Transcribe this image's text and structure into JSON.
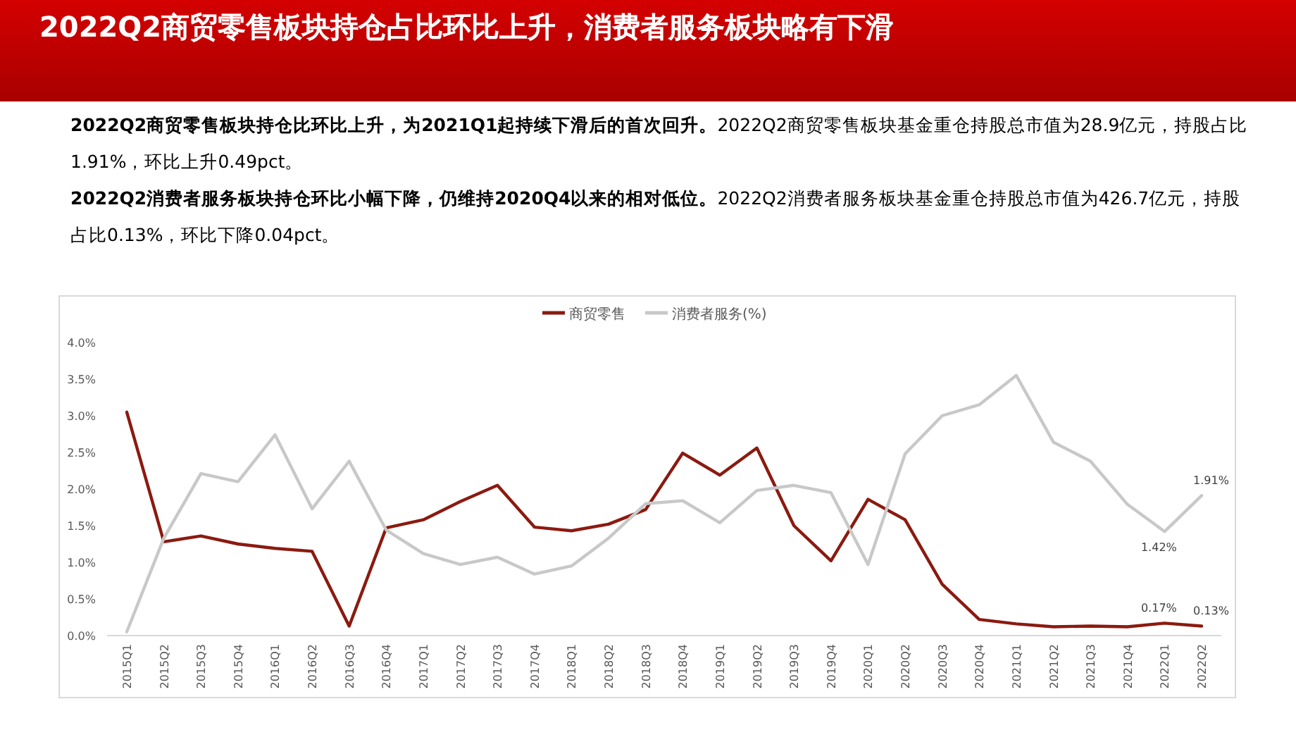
{
  "chart_data": {
    "type": "line",
    "title": "2022Q2商贸零售板块持仓占比环比上升，消费者服务板块略有下滑",
    "annotations": [
      "2022Q2商贸零售板块持仓比环比上升，为2021Q1起持续下滑后的首次回升。",
      "2022Q2商贸零售板块基金重仓持股总市值为28.9亿元，持股占比1.91%，环比上升0.49pct。",
      "2022Q2消费者服务板块持仓环比小幅下降，仍维持2020Q4以来的相对低位。",
      "2022Q2消费者服务板块基金重仓持股总市值为426.7亿元，持股占比0.13%，环比下降0.04pct。"
    ],
    "categories": [
      "2015Q1",
      "2015Q2",
      "2015Q3",
      "2015Q4",
      "2016Q1",
      "2016Q2",
      "2016Q3",
      "2016Q4",
      "2017Q1",
      "2017Q2",
      "2017Q3",
      "2017Q4",
      "2018Q1",
      "2018Q2",
      "2018Q3",
      "2018Q4",
      "2019Q1",
      "2019Q2",
      "2019Q3",
      "2019Q4",
      "2020Q1",
      "2020Q2",
      "2020Q3",
      "2020Q4",
      "2021Q1",
      "2021Q2",
      "2021Q3",
      "2021Q4",
      "2022Q1",
      "2022Q2"
    ],
    "series": [
      {
        "name": "商贸零售",
        "color": "#8b1a10",
        "values": [
          3.05,
          1.28,
          1.36,
          1.25,
          1.19,
          1.15,
          0.13,
          1.47,
          1.58,
          1.83,
          2.05,
          1.48,
          1.43,
          1.52,
          1.72,
          2.49,
          2.19,
          2.56,
          1.5,
          1.02,
          1.86,
          1.58,
          0.7,
          0.22,
          0.16,
          0.12,
          0.13,
          0.12,
          0.17,
          0.13
        ],
        "value_labels": [
          null,
          null,
          null,
          null,
          null,
          null,
          null,
          null,
          null,
          null,
          null,
          null,
          null,
          null,
          null,
          null,
          null,
          null,
          null,
          null,
          null,
          null,
          null,
          null,
          null,
          null,
          null,
          null,
          "0.17%",
          "0.13%"
        ]
      },
      {
        "name": "消费者服务(%)",
        "color": "#c8c8c8",
        "values": [
          0.05,
          1.33,
          2.21,
          2.1,
          2.74,
          1.73,
          2.38,
          1.44,
          1.12,
          0.97,
          1.07,
          0.84,
          0.95,
          1.33,
          1.8,
          1.84,
          1.54,
          1.98,
          2.05,
          1.95,
          0.97,
          2.48,
          3.0,
          3.15,
          3.55,
          2.64,
          2.38,
          1.79,
          1.42,
          1.91
        ],
        "value_labels": [
          null,
          null,
          null,
          null,
          null,
          null,
          null,
          null,
          null,
          null,
          null,
          null,
          null,
          null,
          null,
          null,
          null,
          null,
          null,
          null,
          null,
          null,
          null,
          null,
          null,
          null,
          null,
          null,
          "1.42%",
          "1.91%"
        ]
      }
    ],
    "ylim": [
      0,
      4.0
    ],
    "yticks": [
      {
        "value": 0,
        "label": "0.0%"
      },
      {
        "value": 0.5,
        "label": "0.5%"
      },
      {
        "value": 1.0,
        "label": "1.0%"
      },
      {
        "value": 1.5,
        "label": "1.5%"
      },
      {
        "value": 2.0,
        "label": "2.0%"
      },
      {
        "value": 2.5,
        "label": "2.5%"
      },
      {
        "value": 3.0,
        "label": "3.0%"
      },
      {
        "value": 3.5,
        "label": "3.5%"
      },
      {
        "value": 4.0,
        "label": "4.0%"
      }
    ],
    "grid": false,
    "legend": "top",
    "marker": "none",
    "line_style": "solid"
  }
}
